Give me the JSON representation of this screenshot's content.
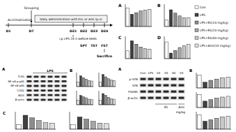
{
  "timeline": {
    "phases": [
      "Acclimatization",
      "Grouping",
      "Daily administration with Esc or Ami (p.o)"
    ],
    "days": [
      "D1",
      "D7",
      "D21",
      "D22",
      "D23",
      "D24"
    ],
    "events": [
      "i.p LPS 24 h before tests",
      "SPT",
      "TST",
      "FST",
      "Sacrifice"
    ]
  },
  "groups": [
    {
      "name": "Con",
      "color": "#ffffff"
    },
    {
      "name": "LPS",
      "color": "#404040"
    },
    {
      "name": "LPS+Es(10 mg/kg)",
      "color": "#8c8c8c"
    },
    {
      "name": "LPS+Es(20 mg/kg)",
      "color": "#a6a6a6"
    },
    {
      "name": "LPS+Es(40 mg/kg)",
      "color": "#c8c8c8"
    },
    {
      "name": "LPS+Ami(10 mg/kg)",
      "color": "#e0e0e0"
    }
  ],
  "panel_labels": [
    "A",
    "B",
    "C",
    "A",
    "B"
  ],
  "blots": [
    {
      "header": "LPS",
      "rows": [
        "TLR4",
        "NF-κB p-p65",
        "NF-κB p65",
        "COX2",
        "iNOS",
        "β-actin"
      ]
    },
    {
      "lanes": [
        "Con",
        "LPS",
        "10",
        "20",
        "40",
        "10"
      ],
      "groups": [
        "Es",
        "Ami"
      ],
      "unit": "mg/kg",
      "rows": [
        "p-SYN",
        "SYN",
        "PSD95",
        "β-actin"
      ]
    }
  ],
  "chart_data": [
    {
      "type": "bar",
      "title": "A",
      "categories": [
        null,
        null,
        null,
        null,
        null,
        null
      ],
      "values": [
        82,
        55,
        62,
        70,
        74,
        76
      ],
      "ylim": [
        0,
        100
      ],
      "tick_labels": false
    },
    {
      "type": "bar",
      "title": "B",
      "categories": [
        null,
        null,
        null,
        null,
        null,
        null
      ],
      "values": [
        60,
        150,
        120,
        95,
        80,
        78
      ],
      "ylim": [
        0,
        200
      ],
      "tick_labels": false
    },
    {
      "type": "bar",
      "title": "C",
      "categories": [
        null,
        null,
        null,
        null,
        null,
        null
      ],
      "values": [
        70,
        160,
        130,
        105,
        90,
        85
      ],
      "ylim": [
        0,
        200
      ],
      "tick_labels": false
    },
    {
      "type": "bar",
      "title": "D",
      "categories": [
        null,
        null,
        null,
        null,
        null,
        null
      ],
      "values": [
        45,
        15,
        22,
        30,
        35,
        38
      ],
      "ylim": [
        0,
        60
      ],
      "tick_labels": false
    },
    {
      "type": "bar",
      "categories": [
        null,
        null,
        null,
        null,
        null,
        null
      ],
      "values": [
        1.0,
        2.3,
        1.9,
        1.6,
        1.3,
        1.2
      ],
      "ylim": [
        0,
        3
      ],
      "tick_labels": false
    },
    {
      "type": "bar",
      "categories": [
        null,
        null,
        null,
        null,
        null,
        null
      ],
      "values": [
        1.0,
        2.6,
        2.1,
        1.7,
        1.4,
        1.3
      ],
      "ylim": [
        0,
        3
      ],
      "tick_labels": false
    },
    {
      "type": "bar",
      "categories": [
        null,
        null,
        null,
        null,
        null,
        null
      ],
      "values": [
        1.0,
        2.0,
        1.7,
        1.5,
        1.2,
        1.1
      ],
      "ylim": [
        0,
        3
      ],
      "tick_labels": false
    },
    {
      "type": "bar",
      "categories": [
        null,
        null,
        null,
        null,
        null,
        null
      ],
      "values": [
        1.0,
        2.4,
        2.0,
        1.6,
        1.3,
        1.2
      ],
      "ylim": [
        0,
        3
      ],
      "tick_labels": false
    },
    {
      "type": "bar",
      "categories": [
        null,
        null,
        null,
        null,
        null,
        null
      ],
      "values": [
        1.0,
        3.2,
        2.6,
        2.0,
        1.5,
        1.4
      ],
      "ylim": [
        0,
        4
      ],
      "tick_labels": false
    },
    {
      "type": "bar",
      "categories": [
        null,
        null,
        null,
        null,
        null,
        null
      ],
      "values": [
        1.0,
        2.8,
        2.3,
        1.8,
        1.4,
        1.3
      ],
      "ylim": [
        0,
        4
      ],
      "tick_labels": false
    },
    {
      "type": "bar",
      "categories": [
        null,
        null,
        null,
        null,
        null,
        null
      ],
      "values": [
        1.0,
        0.45,
        0.6,
        0.7,
        0.8,
        0.85
      ],
      "ylim": [
        0,
        1.2
      ],
      "tick_labels": false
    },
    {
      "type": "bar",
      "categories": [
        null,
        null,
        null,
        null,
        null,
        null
      ],
      "values": [
        1.0,
        0.5,
        0.62,
        0.74,
        0.82,
        0.88
      ],
      "ylim": [
        0,
        1.2
      ],
      "tick_labels": false
    },
    {
      "type": "bar",
      "categories": [
        null,
        null,
        null,
        null,
        null,
        null
      ],
      "values": [
        1.0,
        0.55,
        0.65,
        0.75,
        0.85,
        0.9
      ],
      "ylim": [
        0,
        1.2
      ],
      "tick_labels": false
    }
  ]
}
